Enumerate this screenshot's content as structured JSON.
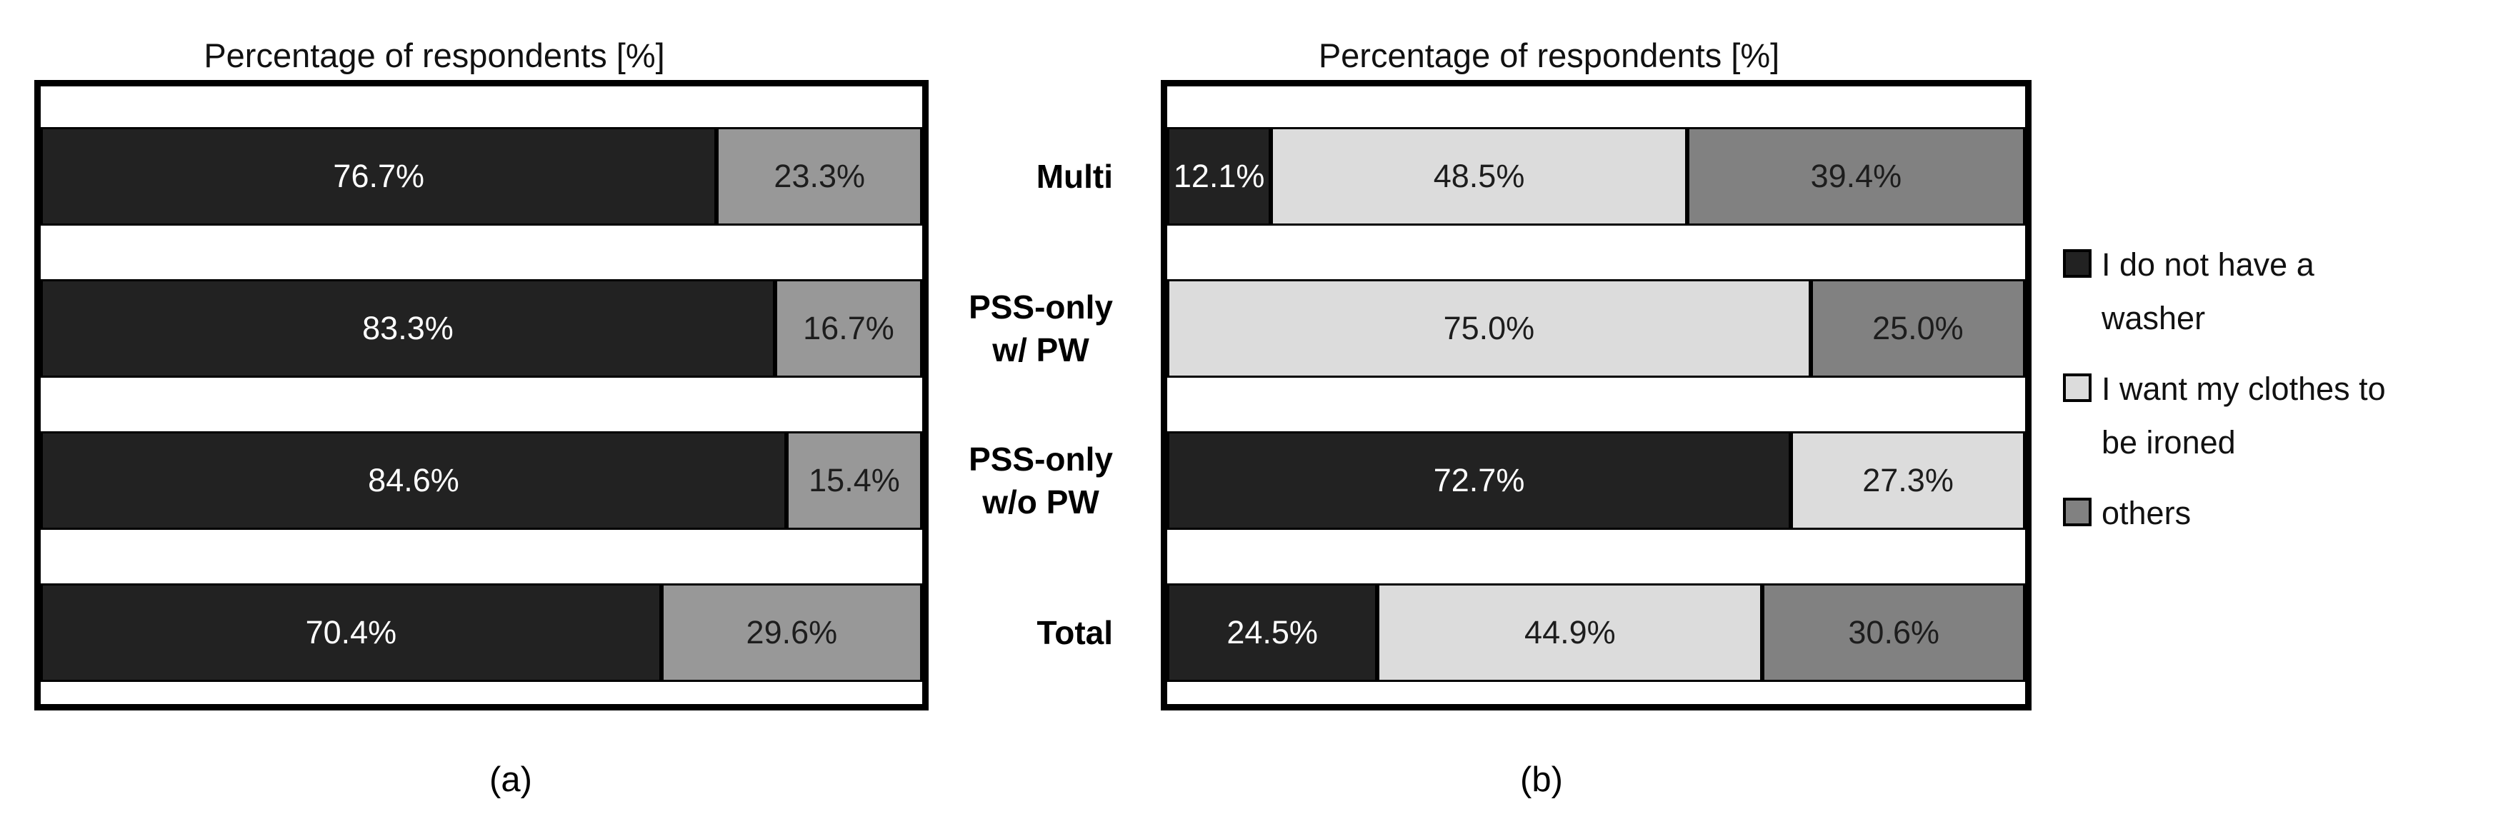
{
  "captions": {
    "a": "(a)",
    "b": "(b)"
  },
  "colors": {
    "dark": "#222222",
    "greyA": "#989898",
    "greyB": "#818181",
    "light": "#dcdcdc",
    "frame": "#000000",
    "value_on_dark": "#ffffff",
    "value_on_light": "#1d1d1d"
  },
  "legend": {
    "items": [
      {
        "swatch": "dark",
        "label": "I do not have a washer"
      },
      {
        "swatch": "light",
        "label": "I want my clothes to be ironed"
      },
      {
        "swatch": "greyB",
        "label": "others"
      }
    ]
  },
  "chart_data": [
    {
      "type": "bar",
      "orientation": "horizontal",
      "stacked": true,
      "title": "Percentage of respondents [%]",
      "caption": "(a)",
      "xlim": [
        0,
        100
      ],
      "grid": false,
      "categories": [
        "",
        "",
        "",
        ""
      ],
      "rows": [
        {
          "label": "",
          "segments": [
            {
              "value": 76.7,
              "label": "76.7%",
              "color": "dark"
            },
            {
              "value": 23.3,
              "label": "23.3%",
              "color": "greyA"
            }
          ]
        },
        {
          "label": "",
          "segments": [
            {
              "value": 83.3,
              "label": "83.3%",
              "color": "dark"
            },
            {
              "value": 16.7,
              "label": "16.7%",
              "color": "greyA"
            }
          ]
        },
        {
          "label": "",
          "segments": [
            {
              "value": 84.6,
              "label": "84.6%",
              "color": "dark"
            },
            {
              "value": 15.4,
              "label": "15.4%",
              "color": "greyA"
            }
          ]
        },
        {
          "label": "",
          "segments": [
            {
              "value": 70.4,
              "label": "70.4%",
              "color": "dark"
            },
            {
              "value": 29.6,
              "label": "29.6%",
              "color": "greyA"
            }
          ]
        }
      ]
    },
    {
      "type": "bar",
      "orientation": "horizontal",
      "stacked": true,
      "title": "Percentage of respondents [%]",
      "caption": "(b)",
      "xlim": [
        0,
        100
      ],
      "grid": false,
      "legend_position": "right",
      "categories": [
        "Multi",
        "PSS-only\nw/ PW",
        "PSS-only\nw/o PW",
        "Total"
      ],
      "rows": [
        {
          "label": "Multi",
          "segments": [
            {
              "value": 12.1,
              "label": "12.1%",
              "color": "dark"
            },
            {
              "value": 48.5,
              "label": "48.5%",
              "color": "light"
            },
            {
              "value": 39.4,
              "label": "39.4%",
              "color": "greyB"
            }
          ]
        },
        {
          "label": "PSS-only\nw/ PW",
          "segments": [
            {
              "value": 75.0,
              "label": "75.0%",
              "color": "light"
            },
            {
              "value": 25.0,
              "label": "25.0%",
              "color": "greyB"
            }
          ]
        },
        {
          "label": "PSS-only\nw/o PW",
          "segments": [
            {
              "value": 72.7,
              "label": "72.7%",
              "color": "dark"
            },
            {
              "value": 27.3,
              "label": "27.3%",
              "color": "light"
            }
          ]
        },
        {
          "label": "Total",
          "segments": [
            {
              "value": 24.5,
              "label": "24.5%",
              "color": "dark"
            },
            {
              "value": 44.9,
              "label": "44.9%",
              "color": "light"
            },
            {
              "value": 30.6,
              "label": "30.6%",
              "color": "greyB"
            }
          ]
        }
      ]
    }
  ]
}
